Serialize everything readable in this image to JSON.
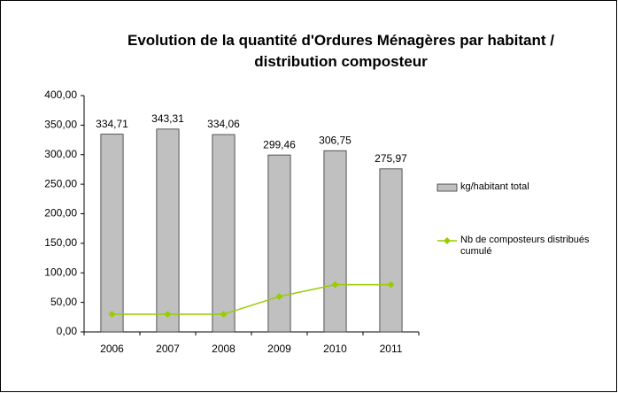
{
  "chart_data": {
    "type": "bar",
    "title": "Evolution de la quantité d'Ordures Ménagères par habitant / distribution composteur",
    "categories": [
      "2006",
      "2007",
      "2008",
      "2009",
      "2010",
      "2011"
    ],
    "series": [
      {
        "name": "kg/habitant total",
        "type": "bar",
        "color": "#c0c0c0",
        "values": [
          334.71,
          343.31,
          334.06,
          299.46,
          306.75,
          275.97
        ],
        "value_labels": [
          "334,71",
          "343,31",
          "334,06",
          "299,46",
          "306,75",
          "275,97"
        ]
      },
      {
        "name": "Nb de composteurs distribués cumulé",
        "type": "line",
        "color": "#99cc00",
        "values": [
          30,
          30,
          30,
          60,
          80,
          80
        ]
      }
    ],
    "ylim": [
      0,
      400
    ],
    "yticks": [
      {
        "value": 0,
        "label": "0,00"
      },
      {
        "value": 50,
        "label": "50,00"
      },
      {
        "value": 100,
        "label": "100,00"
      },
      {
        "value": 150,
        "label": "150,00"
      },
      {
        "value": 200,
        "label": "200,00"
      },
      {
        "value": 250,
        "label": "250,00"
      },
      {
        "value": 300,
        "label": "300,00"
      },
      {
        "value": 350,
        "label": "350,00"
      },
      {
        "value": 400,
        "label": "400,00"
      }
    ],
    "legend": "right"
  }
}
